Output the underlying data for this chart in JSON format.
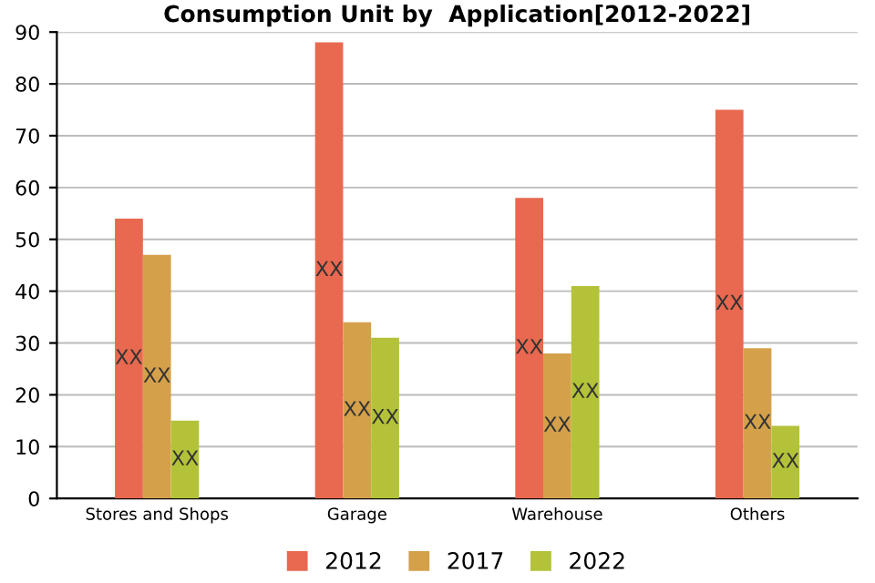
{
  "chart_data": {
    "type": "bar",
    "title": "Consumption Unit by  Application[2012-2022]",
    "categories": [
      "Stores and Shops",
      "Garage",
      "Warehouse",
      "Others"
    ],
    "series": [
      {
        "name": "2012",
        "color": "#e8694f",
        "values": [
          54,
          88,
          58,
          75
        ],
        "value_labels": [
          "XX",
          "XX",
          "XX",
          "XX"
        ]
      },
      {
        "name": "2017",
        "color": "#d4a04a",
        "values": [
          47,
          34,
          28,
          29
        ],
        "value_labels": [
          "XX",
          "XX",
          "XX",
          "XX"
        ]
      },
      {
        "name": "2022",
        "color": "#b4c23a",
        "values": [
          15,
          31,
          41,
          14
        ],
        "value_labels": [
          "XX",
          "XX",
          "XX",
          "XX"
        ]
      }
    ],
    "ylim": [
      0,
      90
    ],
    "yticks": [
      0,
      10,
      20,
      30,
      40,
      50,
      60,
      70,
      80,
      90
    ],
    "grid": "y",
    "legend": "bottom"
  }
}
